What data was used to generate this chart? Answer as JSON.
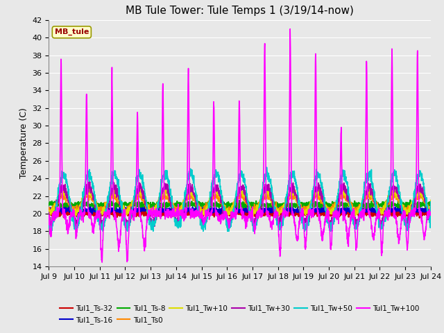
{
  "title": "MB Tule Tower: Tule Temps 1 (3/19/14-now)",
  "ylabel": "Temperature (C)",
  "ylim": [
    14,
    42
  ],
  "yticks": [
    14,
    16,
    18,
    20,
    22,
    24,
    26,
    28,
    30,
    32,
    34,
    36,
    38,
    40,
    42
  ],
  "xlim_start": 0,
  "xlim_end": 15,
  "x_tick_labels": [
    "Jul 9",
    "Jul 10",
    "Jul 11",
    "Jul 12",
    "Jul 13",
    "Jul 14",
    "Jul 15",
    "Jul 16",
    "Jul 17",
    "Jul 18",
    "Jul 19",
    "Jul 20",
    "Jul 21",
    "Jul 22",
    "Jul 23",
    "Jul 24"
  ],
  "legend_label": "MB_tule",
  "series": [
    {
      "name": "Tul1_Ts-32",
      "color": "#cc0000",
      "lw": 1.5
    },
    {
      "name": "Tul1_Ts-16",
      "color": "#0000cc",
      "lw": 1.5
    },
    {
      "name": "Tul1_Ts-8",
      "color": "#00aa00",
      "lw": 1.5
    },
    {
      "name": "Tul1_Ts0",
      "color": "#ff8800",
      "lw": 1.2
    },
    {
      "name": "Tul1_Tw+10",
      "color": "#dddd00",
      "lw": 1.2
    },
    {
      "name": "Tul1_Tw+30",
      "color": "#aa00aa",
      "lw": 1.2
    },
    {
      "name": "Tul1_Tw+50",
      "color": "#00cccc",
      "lw": 1.2
    },
    {
      "name": "Tul1_Tw+100",
      "color": "#ff00ff",
      "lw": 1.2
    }
  ],
  "background_color": "#e8e8e8",
  "grid_color": "#ffffff",
  "title_fontsize": 11,
  "axis_fontsize": 9,
  "tick_fontsize": 8
}
